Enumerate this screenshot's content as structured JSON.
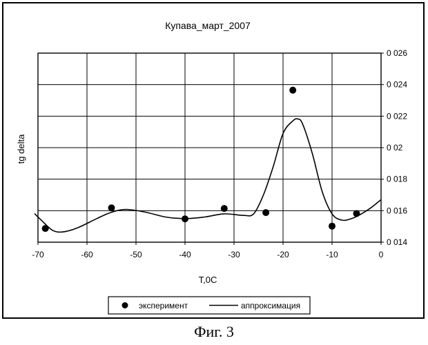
{
  "figure_caption": "Фиг. 3",
  "chart_data": {
    "type": "scatter",
    "title": "Купава_март_2007",
    "xlabel": "T,0C",
    "ylabel": "tg delta",
    "xlim": [
      -70,
      0
    ],
    "ylim": [
      0.014,
      0.026
    ],
    "x_ticks": [
      -70,
      -60,
      -50,
      -40,
      -30,
      -20,
      -10,
      0
    ],
    "x_tick_labels": [
      "-70",
      "-60",
      "-50",
      "-40",
      "-30",
      "-20",
      "-10",
      "0"
    ],
    "y_ticks": [
      0.014,
      0.016,
      0.018,
      0.02,
      0.022,
      0.024,
      0.026
    ],
    "y_tick_labels": [
      "0 014",
      "0 016",
      "0 018",
      "0 02",
      "0 022",
      "0 024",
      "0 026"
    ],
    "y_axis_side": "right",
    "grid": true,
    "legend": {
      "position": "bottom",
      "entries": [
        "эксперимент",
        "аппроксимация"
      ]
    },
    "series": [
      {
        "name": "эксперимент",
        "kind": "points",
        "x": [
          -68.5,
          -55,
          -40,
          -32,
          -23.5,
          -18,
          -10,
          -5
        ],
        "y": [
          0.01487,
          0.01618,
          0.01548,
          0.01614,
          0.01588,
          0.02365,
          0.01502,
          0.01582
        ]
      },
      {
        "name": "аппроксимация",
        "kind": "line",
        "x": [
          -71,
          -69,
          -67,
          -65,
          -62,
          -58,
          -55,
          -52,
          -48,
          -44,
          -40,
          -36,
          -32,
          -28,
          -26,
          -24,
          -22,
          -20,
          -18,
          -17,
          -16,
          -14,
          -12,
          -10,
          -8,
          -6,
          -4,
          -2,
          0
        ],
        "y": [
          0.0159,
          0.0153,
          0.01475,
          0.01465,
          0.0149,
          0.0155,
          0.0159,
          0.01608,
          0.0159,
          0.0156,
          0.0155,
          0.0156,
          0.0158,
          0.0157,
          0.0158,
          0.017,
          0.0188,
          0.0209,
          0.0217,
          0.02182,
          0.0215,
          0.0196,
          0.0172,
          0.0158,
          0.0154,
          0.0155,
          0.0158,
          0.0162,
          0.0167
        ]
      }
    ]
  }
}
